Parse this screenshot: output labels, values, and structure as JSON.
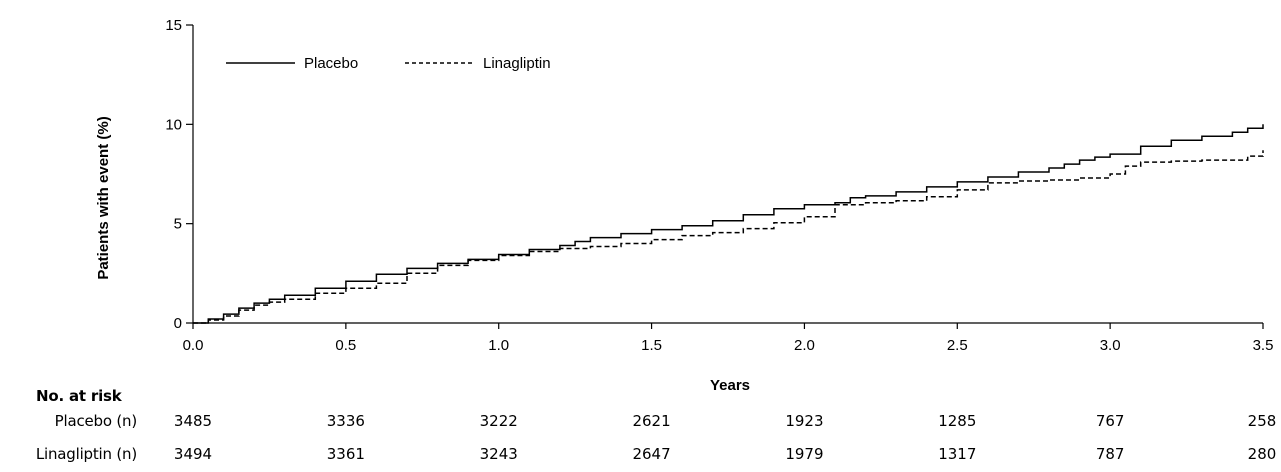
{
  "chart_data": {
    "type": "line",
    "title": "",
    "xlabel": "Years",
    "ylabel": "Patients with event (%)",
    "xlim": [
      0,
      3.5
    ],
    "ylim": [
      0,
      15
    ],
    "x_ticks": [
      "0.0",
      "0.5",
      "1.0",
      "1.5",
      "2.0",
      "2.5",
      "3.0",
      "3.5"
    ],
    "y_ticks": [
      "0",
      "5",
      "10",
      "15"
    ],
    "legend_position": "top-left",
    "grid": false,
    "series": [
      {
        "name": "Placebo",
        "line_style": "solid",
        "color": "#000000",
        "x": [
          0,
          0.05,
          0.1,
          0.15,
          0.2,
          0.25,
          0.3,
          0.4,
          0.5,
          0.6,
          0.7,
          0.8,
          0.9,
          1.0,
          1.1,
          1.2,
          1.25,
          1.3,
          1.4,
          1.5,
          1.6,
          1.7,
          1.8,
          1.9,
          2.0,
          2.1,
          2.15,
          2.2,
          2.3,
          2.4,
          2.5,
          2.6,
          2.7,
          2.8,
          2.85,
          2.9,
          2.95,
          3.0,
          3.1,
          3.2,
          3.3,
          3.4,
          3.45,
          3.5
        ],
        "y": [
          0,
          0.2,
          0.45,
          0.75,
          1.0,
          1.2,
          1.4,
          1.75,
          2.1,
          2.45,
          2.75,
          3.0,
          3.2,
          3.45,
          3.7,
          3.9,
          4.1,
          4.3,
          4.5,
          4.7,
          4.9,
          5.15,
          5.45,
          5.75,
          5.95,
          6.05,
          6.3,
          6.4,
          6.6,
          6.85,
          7.1,
          7.35,
          7.6,
          7.8,
          8.0,
          8.2,
          8.35,
          8.5,
          8.9,
          9.2,
          9.4,
          9.6,
          9.8,
          10.0
        ]
      },
      {
        "name": "Linagliptin",
        "line_style": "dashed",
        "color": "#000000",
        "x": [
          0,
          0.05,
          0.1,
          0.15,
          0.2,
          0.25,
          0.3,
          0.4,
          0.5,
          0.6,
          0.7,
          0.8,
          0.9,
          1.0,
          1.1,
          1.2,
          1.3,
          1.4,
          1.5,
          1.6,
          1.7,
          1.8,
          1.9,
          2.0,
          2.1,
          2.2,
          2.3,
          2.4,
          2.5,
          2.6,
          2.7,
          2.8,
          2.9,
          3.0,
          3.05,
          3.1,
          3.2,
          3.3,
          3.4,
          3.45,
          3.5
        ],
        "y": [
          0,
          0.15,
          0.35,
          0.65,
          0.9,
          1.05,
          1.2,
          1.5,
          1.75,
          2.0,
          2.5,
          2.9,
          3.15,
          3.4,
          3.6,
          3.75,
          3.85,
          4.0,
          4.2,
          4.4,
          4.55,
          4.75,
          5.05,
          5.35,
          5.95,
          6.05,
          6.15,
          6.35,
          6.7,
          7.05,
          7.15,
          7.2,
          7.3,
          7.5,
          7.9,
          8.1,
          8.15,
          8.2,
          8.2,
          8.4,
          8.7
        ]
      }
    ],
    "risk_table": {
      "title": "No. at risk",
      "x": [
        0.0,
        0.5,
        1.0,
        1.5,
        2.0,
        2.5,
        3.0,
        3.5
      ],
      "rows": [
        {
          "label": "Placebo (n)",
          "values": [
            "3485",
            "3336",
            "3222",
            "2621",
            "1923",
            "1285",
            "767",
            "258"
          ]
        },
        {
          "label": "Linagliptin (n)",
          "values": [
            "3494",
            "3361",
            "3243",
            "2647",
            "1979",
            "1317",
            "787",
            "280"
          ]
        }
      ]
    }
  }
}
